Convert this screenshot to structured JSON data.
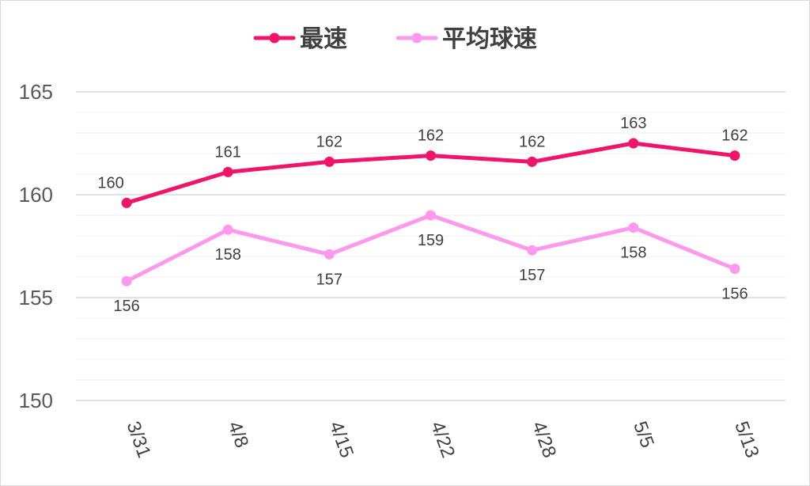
{
  "chart_data": {
    "type": "line",
    "title": "",
    "xlabel": "",
    "ylabel": "",
    "categories": [
      "3/31",
      "4/8",
      "4/15",
      "4/22",
      "4/28",
      "5/5",
      "5/13"
    ],
    "ylim": [
      150,
      165
    ],
    "yticks": [
      150,
      155,
      160,
      165
    ],
    "grid": true,
    "legend_position": "top",
    "series": [
      {
        "name": "最速",
        "color": "#f0146a",
        "values": [
          159.6,
          161.1,
          161.6,
          161.9,
          161.6,
          162.5,
          161.9
        ],
        "labels": [
          "160",
          "161",
          "162",
          "162",
          "162",
          "163",
          "162"
        ],
        "label_position": "above"
      },
      {
        "name": "平均球速",
        "color": "#ff99ee",
        "values": [
          155.8,
          158.3,
          157.1,
          159.0,
          157.3,
          158.4,
          156.4
        ],
        "labels": [
          "156",
          "158",
          "157",
          "159",
          "157",
          "158",
          "156"
        ],
        "label_position": "below"
      }
    ]
  }
}
